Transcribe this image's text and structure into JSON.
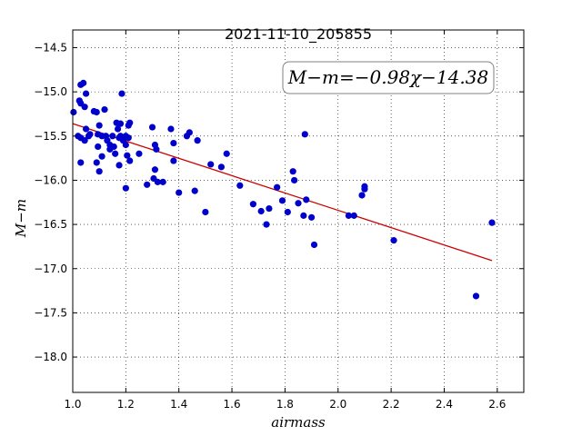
{
  "chart_data": {
    "type": "scatter",
    "title": "2021-11-10_205855",
    "xlabel": "airmass",
    "ylabel": "M−m",
    "xlim": [
      1.0,
      2.7
    ],
    "ylim": [
      -18.4,
      -14.3
    ],
    "y_inverted": true,
    "grid": true,
    "x_ticks": [
      "1.0",
      "1.2",
      "1.4",
      "1.6",
      "1.8",
      "2.0",
      "2.2",
      "2.4",
      "2.6"
    ],
    "y_ticks": [
      "−14.5",
      "−15.0",
      "−15.5",
      "−16.0",
      "−16.5",
      "−17.0",
      "−17.5",
      "−18.0"
    ],
    "annotation": "M−m=−0.98χ−14.38",
    "point_color": "#0000cc",
    "fit_color": "#cc0000",
    "fit": {
      "slope": -0.98,
      "intercept": -14.38,
      "x_range": [
        1.0,
        2.58
      ]
    },
    "points": [
      [
        1.003,
        -15.23
      ],
      [
        1.02,
        -15.5
      ],
      [
        1.025,
        -15.1
      ],
      [
        1.03,
        -15.13
      ],
      [
        1.03,
        -14.92
      ],
      [
        1.04,
        -14.9
      ],
      [
        1.045,
        -15.17
      ],
      [
        1.05,
        -15.02
      ],
      [
        1.05,
        -15.42
      ],
      [
        1.06,
        -15.5
      ],
      [
        1.065,
        -15.48
      ],
      [
        1.03,
        -15.52
      ],
      [
        1.045,
        -15.55
      ],
      [
        1.03,
        -15.8
      ],
      [
        1.08,
        -15.22
      ],
      [
        1.09,
        -15.23
      ],
      [
        1.095,
        -15.48
      ],
      [
        1.095,
        -15.62
      ],
      [
        1.09,
        -15.8
      ],
      [
        1.1,
        -15.9
      ],
      [
        1.1,
        -15.38
      ],
      [
        1.11,
        -15.5
      ],
      [
        1.11,
        -15.73
      ],
      [
        1.12,
        -15.2
      ],
      [
        1.125,
        -15.5
      ],
      [
        1.13,
        -15.55
      ],
      [
        1.14,
        -15.6
      ],
      [
        1.14,
        -15.65
      ],
      [
        1.15,
        -15.5
      ],
      [
        1.155,
        -15.62
      ],
      [
        1.16,
        -15.7
      ],
      [
        1.165,
        -15.35
      ],
      [
        1.17,
        -15.42
      ],
      [
        1.175,
        -15.52
      ],
      [
        1.18,
        -15.5
      ],
      [
        1.18,
        -15.36
      ],
      [
        1.175,
        -15.83
      ],
      [
        1.185,
        -15.02
      ],
      [
        1.19,
        -15.55
      ],
      [
        1.2,
        -15.6
      ],
      [
        1.2,
        -15.5
      ],
      [
        1.21,
        -15.52
      ],
      [
        1.21,
        -15.38
      ],
      [
        1.215,
        -15.35
      ],
      [
        1.205,
        -15.72
      ],
      [
        1.2,
        -16.09
      ],
      [
        1.215,
        -15.78
      ],
      [
        1.25,
        -15.7
      ],
      [
        1.28,
        -16.05
      ],
      [
        1.3,
        -15.4
      ],
      [
        1.305,
        -15.98
      ],
      [
        1.31,
        -15.88
      ],
      [
        1.31,
        -15.6
      ],
      [
        1.315,
        -15.65
      ],
      [
        1.32,
        -16.02
      ],
      [
        1.34,
        -16.02
      ],
      [
        1.37,
        -15.42
      ],
      [
        1.38,
        -15.58
      ],
      [
        1.38,
        -15.78
      ],
      [
        1.4,
        -16.14
      ],
      [
        1.43,
        -15.5
      ],
      [
        1.44,
        -15.46
      ],
      [
        1.46,
        -16.12
      ],
      [
        1.47,
        -15.55
      ],
      [
        1.5,
        -16.36
      ],
      [
        1.52,
        -15.82
      ],
      [
        1.56,
        -15.85
      ],
      [
        1.58,
        -15.7
      ],
      [
        1.63,
        -16.06
      ],
      [
        1.68,
        -16.27
      ],
      [
        1.71,
        -16.35
      ],
      [
        1.73,
        -16.5
      ],
      [
        1.74,
        -16.32
      ],
      [
        1.77,
        -16.08
      ],
      [
        1.79,
        -16.23
      ],
      [
        1.81,
        -16.36
      ],
      [
        1.83,
        -15.9
      ],
      [
        1.835,
        -16.0
      ],
      [
        1.85,
        -16.26
      ],
      [
        1.87,
        -16.4
      ],
      [
        1.88,
        -16.22
      ],
      [
        1.875,
        -15.48
      ],
      [
        1.9,
        -16.42
      ],
      [
        1.91,
        -16.73
      ],
      [
        2.04,
        -16.4
      ],
      [
        2.06,
        -16.4
      ],
      [
        2.09,
        -16.17
      ],
      [
        2.1,
        -16.1
      ],
      [
        2.1,
        -16.07
      ],
      [
        2.21,
        -16.68
      ],
      [
        2.52,
        -17.31
      ],
      [
        2.58,
        -16.48
      ]
    ]
  }
}
